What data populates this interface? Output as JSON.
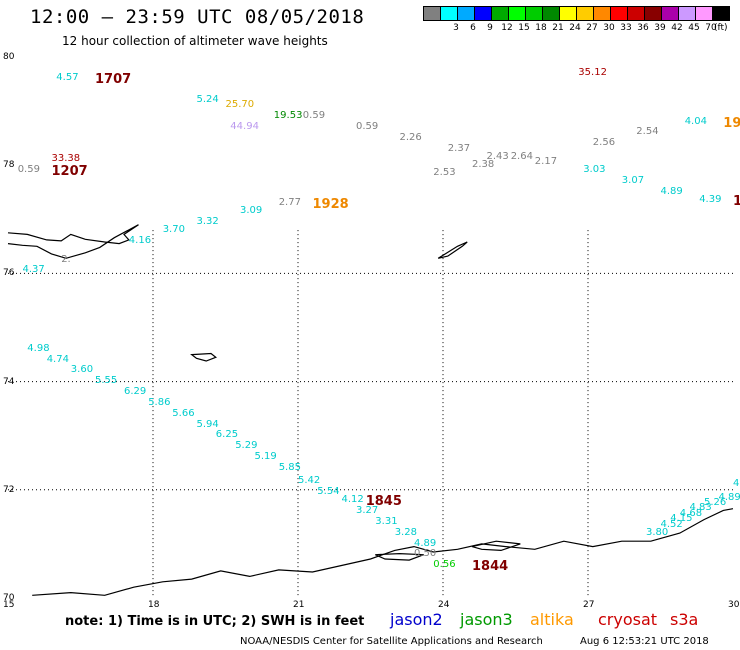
{
  "header": {
    "title": "12:00 – 23:59 UTC 08/05/2018",
    "subtitle": "12 hour collection of altimeter wave heights"
  },
  "colorbar": {
    "unit": "(ft)",
    "entries": [
      {
        "label": "",
        "color": "#808080"
      },
      {
        "label": "3",
        "color": "#00ffff"
      },
      {
        "label": "6",
        "color": "#00aaff"
      },
      {
        "label": "9",
        "color": "#0000ff"
      },
      {
        "label": "12",
        "color": "#00aa00"
      },
      {
        "label": "15",
        "color": "#00ff00"
      },
      {
        "label": "18",
        "color": "#00cc00"
      },
      {
        "label": "21",
        "color": "#008800"
      },
      {
        "label": "24",
        "color": "#ffff00"
      },
      {
        "label": "27",
        "color": "#ffcc00"
      },
      {
        "label": "30",
        "color": "#ff8800"
      },
      {
        "label": "33",
        "color": "#ff0000"
      },
      {
        "label": "36",
        "color": "#cc0000"
      },
      {
        "label": "39",
        "color": "#880000"
      },
      {
        "label": "42",
        "color": "#aa00aa"
      },
      {
        "label": "45",
        "color": "#cc99ff"
      },
      {
        "label": "70",
        "color": "#ff99ff"
      },
      {
        "label": "",
        "color": "#000000"
      }
    ]
  },
  "axes": {
    "lat_labels": [
      "80",
      "78",
      "76",
      "74",
      "72",
      "70"
    ],
    "lon_labels": [
      "15",
      "18",
      "21",
      "24",
      "27",
      "30"
    ]
  },
  "observations": [
    {
      "text": "4.57",
      "color": "#00cccc",
      "lon": 16.0,
      "lat": 79.7
    },
    {
      "text": "1707",
      "color": "#800000",
      "lon": 16.8,
      "lat": 79.7,
      "big": true
    },
    {
      "text": "35.12",
      "color": "#aa0000",
      "lon": 26.8,
      "lat": 79.8
    },
    {
      "text": "5.24",
      "color": "#00cccc",
      "lon": 18.9,
      "lat": 79.3
    },
    {
      "text": "25.70",
      "color": "#ddaa00",
      "lon": 19.5,
      "lat": 79.2
    },
    {
      "text": "19.53",
      "color": "#008800",
      "lon": 20.5,
      "lat": 79.0
    },
    {
      "text": "0.59",
      "color": "#808080",
      "lon": 21.1,
      "lat": 79.0
    },
    {
      "text": "44.94",
      "color": "#bb99ee",
      "lon": 19.6,
      "lat": 78.8
    },
    {
      "text": "0.59",
      "color": "#808080",
      "lon": 22.2,
      "lat": 78.8
    },
    {
      "text": "2.26",
      "color": "#808080",
      "lon": 23.1,
      "lat": 78.6
    },
    {
      "text": "2.37",
      "color": "#808080",
      "lon": 24.1,
      "lat": 78.4
    },
    {
      "text": "2.43",
      "color": "#808080",
      "lon": 24.9,
      "lat": 78.25
    },
    {
      "text": "2.64",
      "color": "#808080",
      "lon": 25.4,
      "lat": 78.25
    },
    {
      "text": "2.38",
      "color": "#808080",
      "lon": 24.6,
      "lat": 78.1
    },
    {
      "text": "2.17",
      "color": "#808080",
      "lon": 25.9,
      "lat": 78.15
    },
    {
      "text": "2.53",
      "color": "#808080",
      "lon": 23.8,
      "lat": 77.95
    },
    {
      "text": "2.56",
      "color": "#808080",
      "lon": 27.1,
      "lat": 78.5
    },
    {
      "text": "2.54",
      "color": "#808080",
      "lon": 28.0,
      "lat": 78.7
    },
    {
      "text": "4.04",
      "color": "#00cccc",
      "lon": 29.0,
      "lat": 78.9
    },
    {
      "text": "19",
      "color": "#ee8800",
      "lon": 29.8,
      "lat": 78.9,
      "big": true
    },
    {
      "text": "3.03",
      "color": "#00cccc",
      "lon": 26.9,
      "lat": 78.0
    },
    {
      "text": "3.07",
      "color": "#00cccc",
      "lon": 27.7,
      "lat": 77.8
    },
    {
      "text": "4.89",
      "color": "#00cccc",
      "lon": 28.5,
      "lat": 77.6
    },
    {
      "text": "4.39",
      "color": "#00cccc",
      "lon": 29.3,
      "lat": 77.45
    },
    {
      "text": "1",
      "color": "#800000",
      "lon": 30.0,
      "lat": 77.45,
      "big": true
    },
    {
      "text": "33.38",
      "color": "#aa0000",
      "lon": 15.9,
      "lat": 78.2
    },
    {
      "text": "0.59",
      "color": "#808080",
      "lon": 15.2,
      "lat": 78.0
    },
    {
      "text": "1207",
      "color": "#800000",
      "lon": 15.9,
      "lat": 78.0,
      "big": true
    },
    {
      "text": "2.77",
      "color": "#808080",
      "lon": 20.6,
      "lat": 77.4
    },
    {
      "text": "1928",
      "color": "#ee8800",
      "lon": 21.3,
      "lat": 77.4,
      "big": true
    },
    {
      "text": "3.09",
      "color": "#00cccc",
      "lon": 19.8,
      "lat": 77.25
    },
    {
      "text": "3.32",
      "color": "#00cccc",
      "lon": 18.9,
      "lat": 77.05
    },
    {
      "text": "3.70",
      "color": "#00cccc",
      "lon": 18.2,
      "lat": 76.9
    },
    {
      "text": "4.16",
      "color": "#00cccc",
      "lon": 17.5,
      "lat": 76.7
    },
    {
      "text": "2.",
      "color": "#808080",
      "lon": 16.1,
      "lat": 76.35
    },
    {
      "text": "4.37",
      "color": "#00cccc",
      "lon": 15.3,
      "lat": 76.15
    },
    {
      "text": "4.98",
      "color": "#00cccc",
      "lon": 15.4,
      "lat": 74.7
    },
    {
      "text": "4.74",
      "color": "#00cccc",
      "lon": 15.8,
      "lat": 74.5
    },
    {
      "text": "3.60",
      "color": "#00cccc",
      "lon": 16.3,
      "lat": 74.3
    },
    {
      "text": "5.55",
      "color": "#00cccc",
      "lon": 16.8,
      "lat": 74.1
    },
    {
      "text": "6.29",
      "color": "#00cccc",
      "lon": 17.4,
      "lat": 73.9
    },
    {
      "text": "5.86",
      "color": "#00cccc",
      "lon": 17.9,
      "lat": 73.7
    },
    {
      "text": "5.66",
      "color": "#00cccc",
      "lon": 18.4,
      "lat": 73.5
    },
    {
      "text": "5.94",
      "color": "#00cccc",
      "lon": 18.9,
      "lat": 73.3
    },
    {
      "text": "6.25",
      "color": "#00cccc",
      "lon": 19.3,
      "lat": 73.1
    },
    {
      "text": "5.29",
      "color": "#00cccc",
      "lon": 19.7,
      "lat": 72.9
    },
    {
      "text": "5.19",
      "color": "#00cccc",
      "lon": 20.1,
      "lat": 72.7
    },
    {
      "text": "5.85",
      "color": "#00cccc",
      "lon": 20.6,
      "lat": 72.5
    },
    {
      "text": "5.42",
      "color": "#00cccc",
      "lon": 21.0,
      "lat": 72.25
    },
    {
      "text": "5.54",
      "color": "#00cccc",
      "lon": 21.4,
      "lat": 72.05
    },
    {
      "text": "4.12",
      "color": "#00cccc",
      "lon": 21.9,
      "lat": 71.9
    },
    {
      "text": "1845",
      "color": "#800000",
      "lon": 22.4,
      "lat": 71.9,
      "big": true
    },
    {
      "text": "3.27",
      "color": "#00cccc",
      "lon": 22.2,
      "lat": 71.7
    },
    {
      "text": "3.31",
      "color": "#00cccc",
      "lon": 22.6,
      "lat": 71.5
    },
    {
      "text": "3.28",
      "color": "#00cccc",
      "lon": 23.0,
      "lat": 71.3
    },
    {
      "text": "4.89",
      "color": "#00cccc",
      "lon": 23.4,
      "lat": 71.1
    },
    {
      "text": "0.50",
      "color": "#808080",
      "lon": 23.4,
      "lat": 70.9
    },
    {
      "text": "0.56",
      "color": "#00cc00",
      "lon": 23.8,
      "lat": 70.7
    },
    {
      "text": "1844",
      "color": "#800000",
      "lon": 24.6,
      "lat": 70.7,
      "big": true
    },
    {
      "text": "3.80",
      "color": "#00cccc",
      "lon": 28.2,
      "lat": 71.3
    },
    {
      "text": "4.52",
      "color": "#00cccc",
      "lon": 28.5,
      "lat": 71.45
    },
    {
      "text": "4.15",
      "color": "#00cccc",
      "lon": 28.7,
      "lat": 71.55
    },
    {
      "text": "4.68",
      "color": "#00cccc",
      "lon": 28.9,
      "lat": 71.65
    },
    {
      "text": "4.83",
      "color": "#00cccc",
      "lon": 29.1,
      "lat": 71.75
    },
    {
      "text": "5.26",
      "color": "#00cccc",
      "lon": 29.4,
      "lat": 71.85
    },
    {
      "text": "4.89",
      "color": "#00cccc",
      "lon": 29.7,
      "lat": 71.95
    },
    {
      "text": "4",
      "color": "#00cccc",
      "lon": 30.0,
      "lat": 72.2
    }
  ],
  "footer": {
    "note": "note: 1) Time is in UTC; 2) SWH is in feet",
    "satellites": [
      {
        "name": "jason2",
        "color": "#0000cc"
      },
      {
        "name": "jason3",
        "color": "#009900"
      },
      {
        "name": "altika",
        "color": "#ff9900"
      },
      {
        "name": "cryosat",
        "color": "#cc0000"
      },
      {
        "name": "s3a",
        "color": "#cc0000"
      }
    ],
    "credit": "NOAA/NESDIS Center for Satellite Applications and Research",
    "generated": "Aug  6 12:53:21 UTC 2018"
  }
}
